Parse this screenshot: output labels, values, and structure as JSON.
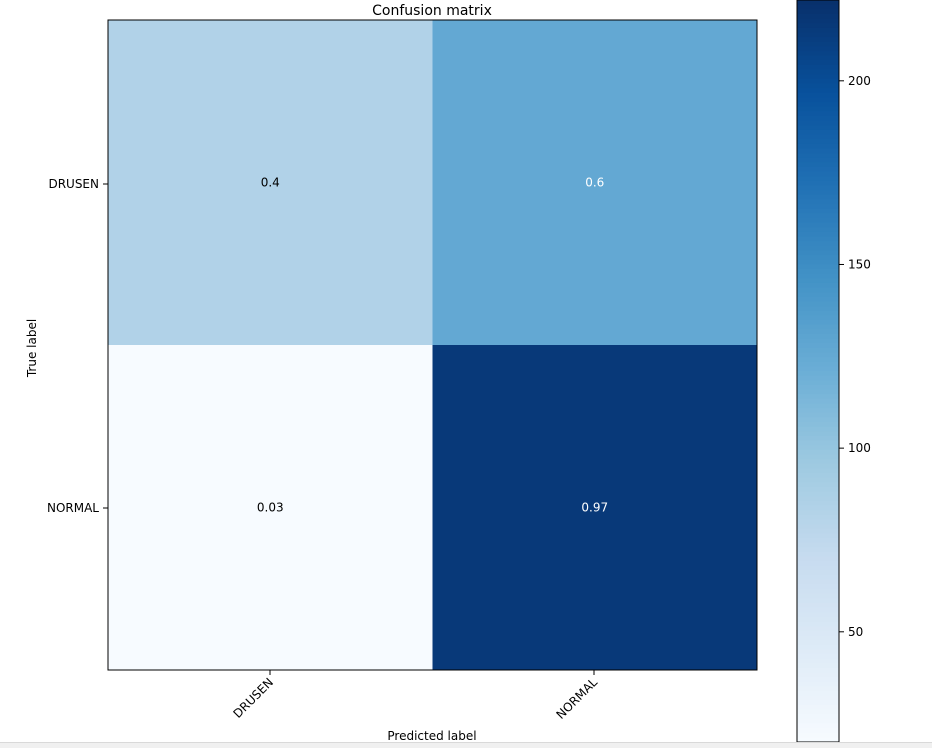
{
  "chart_data": {
    "type": "heatmap",
    "title": "Confusion matrix",
    "xlabel": "Predicted label",
    "ylabel": "True label",
    "x_categories": [
      "DRUSEN",
      "NORMAL"
    ],
    "y_categories": [
      "DRUSEN",
      "NORMAL"
    ],
    "cell_labels": [
      [
        "0.4",
        "0.6"
      ],
      [
        "0.03",
        "0.97"
      ]
    ],
    "cell_values": [
      [
        0.4,
        0.6
      ],
      [
        0.03,
        0.97
      ]
    ],
    "cell_counts": [
      [
        84,
        126
      ],
      [
        6,
        215
      ]
    ],
    "colormap": "Blues",
    "colorbar": {
      "range": [
        20,
        222
      ],
      "ticks": [
        50,
        100,
        150,
        200
      ]
    },
    "grid": false,
    "legend": "none"
  }
}
